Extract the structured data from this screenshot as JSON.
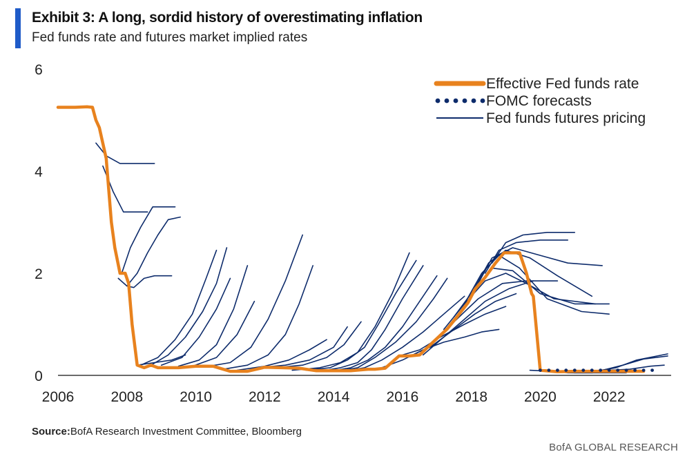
{
  "header": {
    "title": "Exhibit 3: A long, sordid history of overestimating inflation",
    "subtitle": "Fed funds rate and futures market implied rates"
  },
  "footer": {
    "source_label": "Source:",
    "source_text": "BofA Research Investment Committee, Bloomberg",
    "brand": "BofA GLOBAL RESEARCH"
  },
  "colors": {
    "fed_funds": "#e8821e",
    "futures": "#0d2b6b",
    "fomc": "#0d2b6b",
    "accent": "#1f5bc8"
  },
  "chart_data": {
    "type": "line",
    "title": "Exhibit 3: A long, sordid history of overestimating inflation",
    "subtitle": "Fed funds rate and futures market implied rates",
    "xlabel": "",
    "ylabel": "",
    "xlim": [
      2006,
      2023.8
    ],
    "ylim": [
      0,
      6
    ],
    "x_ticks": [
      "2006",
      "2008",
      "2010",
      "2012",
      "2014",
      "2016",
      "2018",
      "2020",
      "2022"
    ],
    "y_ticks": [
      "0",
      "2",
      "4",
      "6"
    ],
    "grid": false,
    "legend_position": "top-right",
    "legend": [
      "Effective Fed funds rate",
      "FOMC forecasts",
      "Fed funds futures pricing"
    ],
    "series": [
      {
        "name": "Effective Fed funds rate",
        "style": "thick-line",
        "x": [
          2006.0,
          2006.5,
          2006.85,
          2007.0,
          2007.1,
          2007.2,
          2007.4,
          2007.55,
          2007.65,
          2007.8,
          2007.95,
          2008.05,
          2008.15,
          2008.3,
          2008.5,
          2008.7,
          2008.9,
          2009.0,
          2009.5,
          2010.0,
          2010.5,
          2011.0,
          2011.5,
          2012.0,
          2012.5,
          2013.0,
          2013.5,
          2014.0,
          2014.5,
          2015.0,
          2015.2,
          2015.5,
          2015.9,
          2016.2,
          2016.5,
          2016.9,
          2017.3,
          2017.6,
          2017.9,
          2018.1,
          2018.4,
          2018.7,
          2018.95,
          2019.1,
          2019.4,
          2019.6,
          2019.75,
          2019.8,
          2020.0,
          2020.5,
          2021.0,
          2022.0,
          2023.0
        ],
        "y": [
          5.25,
          5.25,
          5.26,
          5.25,
          5.0,
          4.85,
          4.25,
          3.0,
          2.5,
          2.0,
          2.0,
          1.8,
          1.0,
          0.2,
          0.15,
          0.2,
          0.15,
          0.15,
          0.15,
          0.18,
          0.18,
          0.08,
          0.08,
          0.16,
          0.15,
          0.14,
          0.09,
          0.09,
          0.09,
          0.12,
          0.12,
          0.14,
          0.38,
          0.38,
          0.4,
          0.66,
          0.91,
          1.16,
          1.42,
          1.68,
          1.92,
          2.2,
          2.4,
          2.4,
          2.4,
          2.0,
          1.6,
          1.55,
          0.1,
          0.07,
          0.08,
          0.08,
          0.08
        ]
      },
      {
        "name": "FOMC forecasts",
        "style": "dots",
        "x": [
          2020.0,
          2020.25,
          2020.5,
          2020.75,
          2021.0,
          2021.25,
          2021.5,
          2021.75,
          2022.0,
          2022.25,
          2022.5,
          2022.75,
          2023.0,
          2023.25
        ],
        "y": [
          0.1,
          0.1,
          0.1,
          0.1,
          0.1,
          0.1,
          0.1,
          0.1,
          0.1,
          0.1,
          0.1,
          0.1,
          0.1,
          0.1
        ]
      },
      {
        "name": "Fed funds futures pricing",
        "style": "thin-lines",
        "curves": [
          {
            "x": [
              2007.1,
              2007.4,
              2007.8,
              2008.2,
              2008.8
            ],
            "y": [
              4.55,
              4.3,
              4.15,
              4.15,
              4.15
            ]
          },
          {
            "x": [
              2007.3,
              2007.6,
              2007.9,
              2008.2,
              2008.6
            ],
            "y": [
              4.1,
              3.6,
              3.2,
              3.2,
              3.2
            ]
          },
          {
            "x": [
              2007.75,
              2008.0,
              2008.2,
              2008.5,
              2008.8,
              2009.3
            ],
            "y": [
              1.9,
              1.75,
              1.72,
              1.9,
              1.95,
              1.95
            ]
          },
          {
            "x": [
              2007.85,
              2008.1,
              2008.4,
              2008.75,
              2009.4
            ],
            "y": [
              2.0,
              2.5,
              2.9,
              3.3,
              3.3
            ]
          },
          {
            "x": [
              2008.0,
              2008.3,
              2008.6,
              2008.9,
              2009.2,
              2009.55
            ],
            "y": [
              1.75,
              2.0,
              2.4,
              2.75,
              3.05,
              3.1
            ]
          },
          {
            "x": [
              2008.3,
              2008.8,
              2009.3,
              2009.7
            ],
            "y": [
              0.2,
              0.25,
              0.3,
              0.4
            ]
          },
          {
            "x": [
              2008.4,
              2008.9,
              2009.4,
              2009.9,
              2010.3,
              2010.6
            ],
            "y": [
              0.2,
              0.35,
              0.7,
              1.2,
              1.9,
              2.45
            ]
          },
          {
            "x": [
              2008.7,
              2009.2,
              2009.7,
              2010.2,
              2010.6,
              2010.9
            ],
            "y": [
              0.2,
              0.4,
              0.75,
              1.25,
              1.8,
              2.5
            ]
          },
          {
            "x": [
              2009.0,
              2009.6,
              2010.1,
              2010.6,
              2011.0
            ],
            "y": [
              0.2,
              0.35,
              0.75,
              1.3,
              1.9
            ]
          },
          {
            "x": [
              2009.5,
              2010.1,
              2010.6,
              2011.1,
              2011.5
            ],
            "y": [
              0.18,
              0.3,
              0.6,
              1.3,
              2.15
            ]
          },
          {
            "x": [
              2009.9,
              2010.6,
              2011.2,
              2011.7
            ],
            "y": [
              0.18,
              0.35,
              0.8,
              1.45
            ]
          },
          {
            "x": [
              2010.3,
              2011.0,
              2011.6,
              2012.1,
              2012.6,
              2013.1
            ],
            "y": [
              0.17,
              0.25,
              0.55,
              1.1,
              1.85,
              2.75
            ]
          },
          {
            "x": [
              2010.8,
              2011.5,
              2012.1,
              2012.6,
              2013.0,
              2013.4
            ],
            "y": [
              0.12,
              0.2,
              0.4,
              0.8,
              1.4,
              2.15
            ]
          },
          {
            "x": [
              2011.2,
              2012.0,
              2012.7,
              2013.3,
              2013.8
            ],
            "y": [
              0.1,
              0.18,
              0.3,
              0.5,
              0.7
            ]
          },
          {
            "x": [
              2011.8,
              2012.6,
              2013.3,
              2014.0,
              2014.4
            ],
            "y": [
              0.15,
              0.2,
              0.3,
              0.55,
              0.95
            ]
          },
          {
            "x": [
              2012.3,
              2013.1,
              2013.8,
              2014.3,
              2014.8
            ],
            "y": [
              0.15,
              0.2,
              0.35,
              0.6,
              1.05
            ]
          },
          {
            "x": [
              2012.8,
              2013.6,
              2014.2,
              2014.7,
              2015.2,
              2015.7,
              2016.2
            ],
            "y": [
              0.1,
              0.15,
              0.25,
              0.45,
              0.95,
              1.6,
              2.4
            ]
          },
          {
            "x": [
              2013.2,
              2013.9,
              2014.4,
              2014.9,
              2015.3,
              2015.8,
              2016.4
            ],
            "y": [
              0.1,
              0.15,
              0.3,
              0.55,
              1.0,
              1.6,
              2.25
            ]
          },
          {
            "x": [
              2013.6,
              2014.2,
              2014.7,
              2015.1,
              2015.5,
              2016.0,
              2016.6
            ],
            "y": [
              0.08,
              0.15,
              0.25,
              0.5,
              0.9,
              1.5,
              2.15
            ]
          },
          {
            "x": [
              2013.9,
              2014.5,
              2015.0,
              2015.5,
              2016.0,
              2016.5,
              2017.0
            ],
            "y": [
              0.08,
              0.15,
              0.3,
              0.55,
              0.95,
              1.45,
              1.95
            ]
          },
          {
            "x": [
              2014.1,
              2014.7,
              2015.2,
              2015.8,
              2016.4,
              2016.9,
              2017.3
            ],
            "y": [
              0.08,
              0.15,
              0.35,
              0.65,
              1.05,
              1.5,
              1.9
            ]
          },
          {
            "x": [
              2014.3,
              2014.9,
              2015.4,
              2016.0,
              2016.6,
              2017.2,
              2017.8
            ],
            "y": [
              0.08,
              0.15,
              0.3,
              0.55,
              0.85,
              1.2,
              1.55
            ]
          },
          {
            "x": [
              2015.4,
              2016.0,
              2016.6,
              2017.2,
              2017.8,
              2018.3,
              2018.8
            ],
            "y": [
              0.15,
              0.3,
              0.5,
              0.65,
              0.75,
              0.85,
              0.9
            ]
          },
          {
            "x": [
              2015.9,
              2016.5,
              2017.1,
              2017.8,
              2018.4,
              2019.0
            ],
            "y": [
              0.38,
              0.5,
              0.75,
              1.0,
              1.2,
              1.35
            ]
          },
          {
            "x": [
              2016.3,
              2016.9,
              2017.5,
              2018.1,
              2018.7,
              2019.3
            ],
            "y": [
              0.4,
              0.6,
              0.9,
              1.2,
              1.45,
              1.6
            ]
          },
          {
            "x": [
              2016.6,
              2017.2,
              2017.8,
              2018.4,
              2019.1,
              2019.8
            ],
            "y": [
              0.4,
              0.75,
              1.1,
              1.45,
              1.7,
              1.85
            ]
          },
          {
            "x": [
              2016.9,
              2017.5,
              2018.2,
              2018.9,
              2019.6,
              2020.5
            ],
            "y": [
              0.66,
              1.05,
              1.5,
              1.8,
              1.85,
              1.85
            ]
          },
          {
            "x": [
              2017.2,
              2017.8,
              2018.4,
              2019.0,
              2019.6,
              2020.4,
              2021.6
            ],
            "y": [
              0.9,
              1.4,
              1.85,
              2.0,
              1.8,
              1.5,
              1.4
            ]
          },
          {
            "x": [
              2017.5,
              2018.1,
              2018.6,
              2019.2,
              2020.0,
              2021.0,
              2022.0
            ],
            "y": [
              1.15,
              1.7,
              2.1,
              2.05,
              1.6,
              1.4,
              1.4
            ]
          },
          {
            "x": [
              2017.8,
              2018.3,
              2018.8,
              2019.4,
              2020.2,
              2021.2,
              2022.0
            ],
            "y": [
              1.4,
              2.0,
              2.35,
              2.1,
              1.5,
              1.25,
              1.2
            ]
          },
          {
            "x": [
              2018.0,
              2018.5,
              2019.0,
              2019.7,
              2020.5,
              2021.5
            ],
            "y": [
              1.6,
              2.2,
              2.45,
              2.3,
              1.95,
              1.55
            ]
          },
          {
            "x": [
              2018.2,
              2018.6,
              2019.2,
              2020.0,
              2020.8,
              2021.8
            ],
            "y": [
              1.8,
              2.3,
              2.5,
              2.35,
              2.2,
              2.15
            ]
          },
          {
            "x": [
              2018.4,
              2018.8,
              2019.3,
              2020.0,
              2020.8
            ],
            "y": [
              2.0,
              2.45,
              2.6,
              2.65,
              2.65
            ]
          },
          {
            "x": [
              2018.6,
              2019.0,
              2019.5,
              2020.2,
              2021.0
            ],
            "y": [
              2.2,
              2.6,
              2.75,
              2.8,
              2.8
            ]
          },
          {
            "x": [
              2019.7,
              2020.3,
              2021.0,
              2021.8,
              2022.5
            ],
            "y": [
              0.1,
              0.08,
              0.05,
              0.05,
              0.05
            ]
          },
          {
            "x": [
              2020.2,
              2020.8,
              2021.5,
              2022.2,
              2022.9
            ],
            "y": [
              0.1,
              0.05,
              0.05,
              0.08,
              0.1
            ]
          },
          {
            "x": [
              2020.4,
              2021.0,
              2021.6,
              2022.2,
              2022.8,
              2023.7
            ],
            "y": [
              0.08,
              0.06,
              0.08,
              0.15,
              0.3,
              0.42
            ]
          },
          {
            "x": [
              2020.6,
              2021.2,
              2021.8,
              2022.4,
              2023.0,
              2023.7
            ],
            "y": [
              0.08,
              0.08,
              0.1,
              0.2,
              0.32,
              0.38
            ]
          },
          {
            "x": [
              2020.8,
              2021.4,
              2022.0,
              2022.6,
              2023.2,
              2023.6
            ],
            "y": [
              0.08,
              0.08,
              0.1,
              0.12,
              0.18,
              0.2
            ]
          }
        ]
      }
    ]
  }
}
